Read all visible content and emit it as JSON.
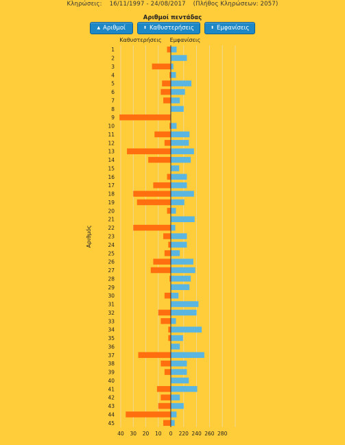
{
  "header": {
    "label": "Κληρώσεις:",
    "range": "16/11/1997 - 24/08/2017",
    "count": "(Πλήθος Κληρώσεων: 2057)"
  },
  "buttons": [
    {
      "label": "Αριθμοί",
      "icon": "triangle-up-icon"
    },
    {
      "label": "Καθυστερήσεις",
      "icon": "sort-arrows-icon"
    },
    {
      "label": "Εμφανίσεις",
      "icon": "sort-arrows-icon"
    }
  ],
  "chart_data": {
    "type": "bar",
    "orientation": "horizontal",
    "title": "Αριθμοί πεντάδας",
    "ylabel": "Αριθμός",
    "categories": [
      "1",
      "2",
      "3",
      "4",
      "5",
      "6",
      "7",
      "8",
      "9",
      "10",
      "11",
      "12",
      "13",
      "14",
      "15",
      "16",
      "17",
      "18",
      "19",
      "20",
      "21",
      "22",
      "23",
      "24",
      "25",
      "26",
      "27",
      "28",
      "29",
      "30",
      "31",
      "32",
      "33",
      "34",
      "35",
      "36",
      "37",
      "38",
      "39",
      "40",
      "41",
      "42",
      "43",
      "44",
      "45"
    ],
    "series": [
      {
        "name": "Καθυστερήσεις",
        "color": "#FF6F0F",
        "side": "left",
        "xlim": [
          0,
          40
        ],
        "tick_labels": [
          "40",
          "30",
          "20",
          "10",
          "0"
        ],
        "values": [
          3,
          0,
          15,
          1,
          7,
          8,
          6,
          0,
          41,
          1,
          13,
          5,
          35,
          18,
          0,
          3,
          14,
          30,
          27,
          3,
          0,
          30,
          6,
          2,
          5,
          14,
          16,
          1,
          0,
          5,
          0,
          10,
          8,
          2,
          2,
          0,
          26,
          8,
          5,
          0,
          11,
          8,
          10,
          36,
          6
        ]
      },
      {
        "name": "Εμφανίσεις",
        "color": "#5BB5E1",
        "side": "right",
        "xlim": [
          200,
          300
        ],
        "tick_labels": [
          "220",
          "240",
          "260",
          "280"
        ],
        "values": [
          209,
          225,
          204,
          208,
          232,
          222,
          214,
          220,
          200,
          209,
          229,
          228,
          236,
          231,
          213,
          225,
          225,
          236,
          221,
          208,
          237,
          207,
          225,
          225,
          214,
          235,
          238,
          231,
          229,
          212,
          243,
          240,
          208,
          248,
          219,
          214,
          252,
          225,
          225,
          228,
          241,
          214,
          220,
          209,
          206
        ]
      }
    ],
    "grid": true
  }
}
